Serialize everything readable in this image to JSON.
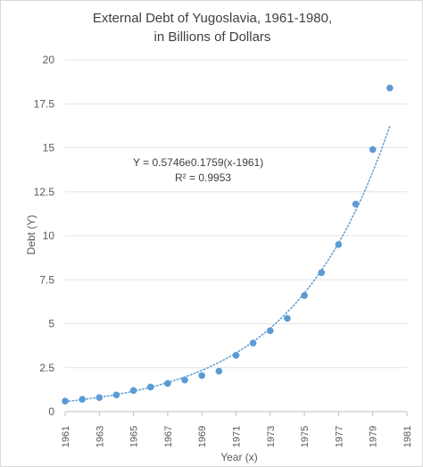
{
  "chart_data": {
    "type": "scatter",
    "title_lines": [
      "External Debt of Yugoslavia, 1961-1980,",
      "in Billions of Dollars"
    ],
    "xlabel": "Year (x)",
    "ylabel": "Debt (Y)",
    "xlim": [
      1961,
      1981
    ],
    "ylim": [
      0,
      20
    ],
    "x_ticks": [
      "1961",
      "1963",
      "1965",
      "1967",
      "1969",
      "1971",
      "1973",
      "1975",
      "1977",
      "1979",
      "1981"
    ],
    "y_ticks": [
      "0",
      "2.5",
      "5",
      "7.5",
      "10",
      "12.5",
      "15",
      "17.5",
      "20"
    ],
    "grid": true,
    "legend": "none",
    "series": [
      {
        "color": "#5b9bd5",
        "points": [
          {
            "x": 1961,
            "y": 0.6
          },
          {
            "x": 1962,
            "y": 0.7
          },
          {
            "x": 1963,
            "y": 0.8
          },
          {
            "x": 1964,
            "y": 0.95
          },
          {
            "x": 1965,
            "y": 1.2
          },
          {
            "x": 1966,
            "y": 1.4
          },
          {
            "x": 1967,
            "y": 1.6
          },
          {
            "x": 1968,
            "y": 1.8
          },
          {
            "x": 1969,
            "y": 2.05
          },
          {
            "x": 1970,
            "y": 2.3
          },
          {
            "x": 1971,
            "y": 3.2
          },
          {
            "x": 1972,
            "y": 3.9
          },
          {
            "x": 1973,
            "y": 4.6
          },
          {
            "x": 1974,
            "y": 5.3
          },
          {
            "x": 1975,
            "y": 6.6
          },
          {
            "x": 1976,
            "y": 7.9
          },
          {
            "x": 1977,
            "y": 9.5
          },
          {
            "x": 1978,
            "y": 11.8
          },
          {
            "x": 1979,
            "y": 14.9
          },
          {
            "x": 1980,
            "y": 18.4
          }
        ]
      }
    ],
    "trendline": {
      "type": "exponential",
      "a": 0.5746,
      "b": 0.1759,
      "x0": 1961,
      "x_range": [
        1961,
        1980
      ],
      "style": "dotted",
      "color": "#5b9bd5",
      "equation_label": "Y = 0.5746e0.1759(x-1961)",
      "r_squared_label": "R² = 0.9953"
    }
  }
}
